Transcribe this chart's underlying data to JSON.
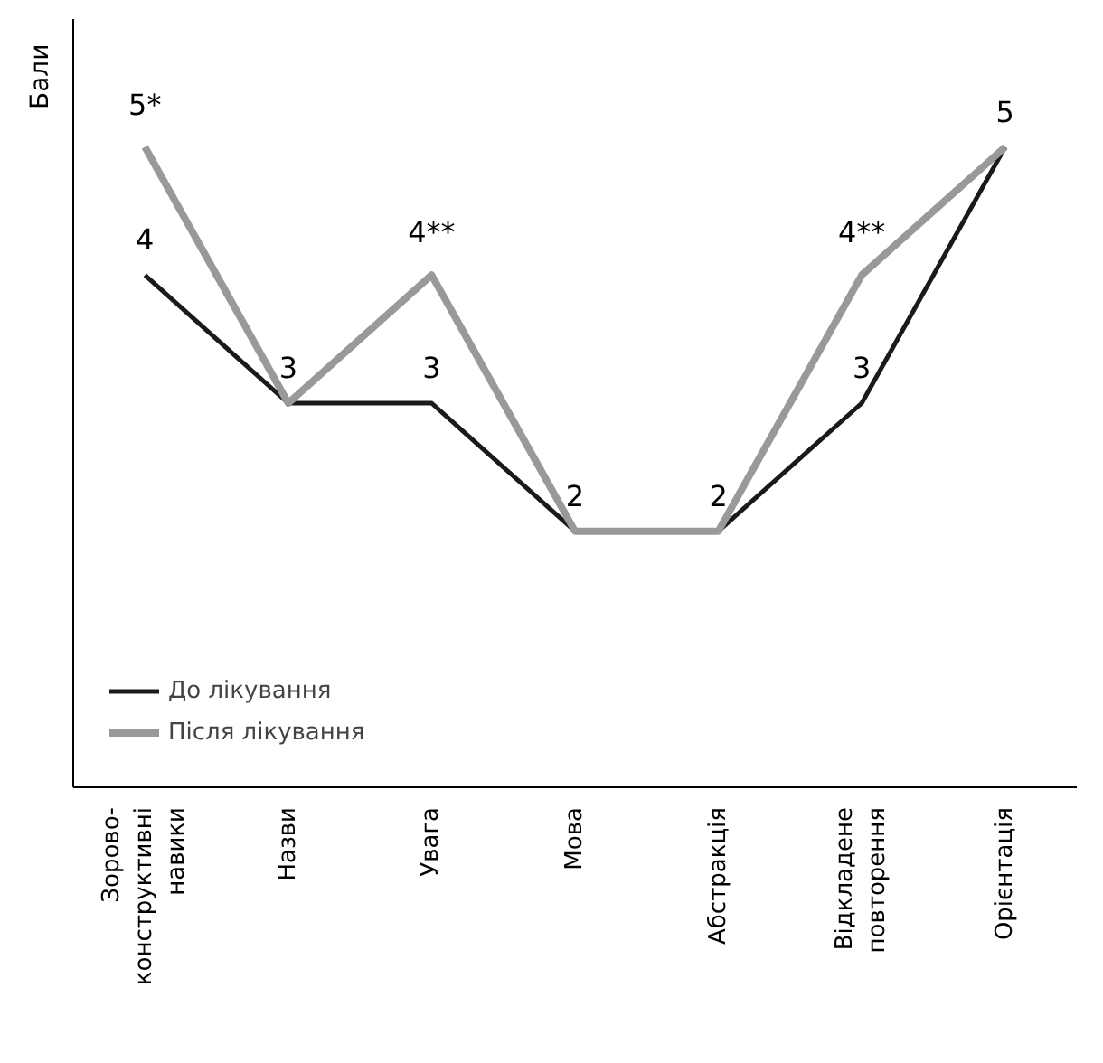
{
  "chart_data": {
    "type": "line",
    "ylabel": "Бали",
    "categories": [
      "Зорово-\nконструктивні\nнавики",
      "Назви",
      "Увага",
      "Мова",
      "Абстракція",
      "Відкладене\nповторення",
      "Орієнтація"
    ],
    "series": [
      {
        "name": "До лікування",
        "color": "#1a1a1a",
        "values": [
          4,
          3,
          3,
          2,
          2,
          3,
          5
        ],
        "value_labels": [
          "4",
          "3",
          "3",
          "2",
          "2",
          "3",
          null
        ]
      },
      {
        "name": "Після лікування",
        "color": "#999999",
        "values": [
          5,
          3,
          4,
          2,
          2,
          4,
          5
        ],
        "value_labels": [
          "5*",
          null,
          "4**",
          null,
          null,
          "4**",
          "5"
        ]
      }
    ],
    "ylim": [
      0,
      6
    ],
    "tick_labels": "x",
    "grid": false,
    "legend": "bottom left",
    "marker": "none",
    "line_style": "solid"
  }
}
